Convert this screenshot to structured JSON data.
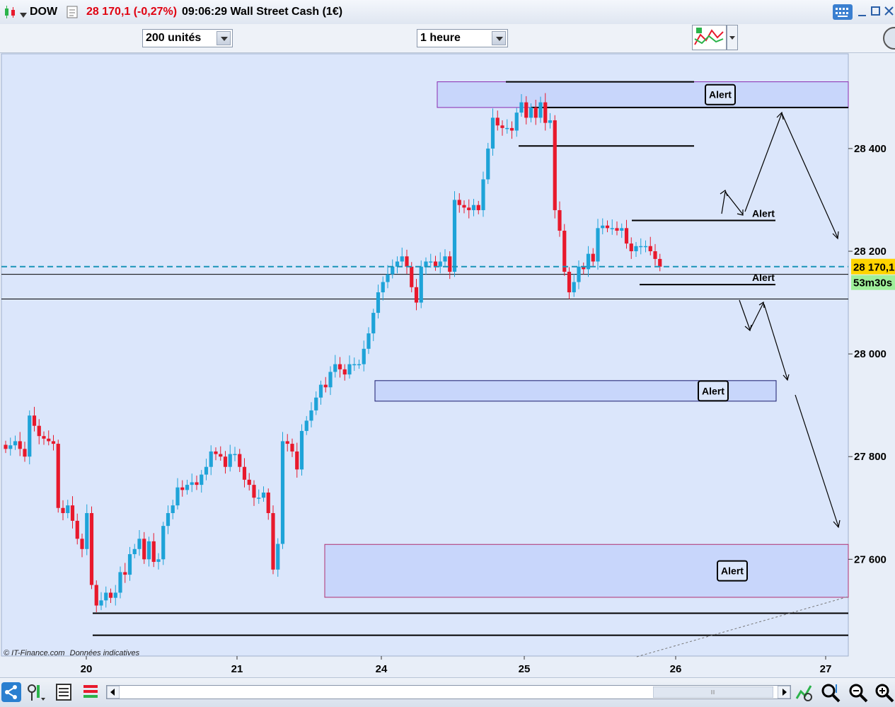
{
  "header": {
    "symbol": "DOW",
    "price_change": "28 170,1 (-0,27%)",
    "time_name": "09:06:29 Wall Street Cash (1€)"
  },
  "toolbar": {
    "quantity": "200 unités",
    "timeframe": "1 heure"
  },
  "chart_data": {
    "type": "candlestick",
    "instrument": "DOW",
    "ylim": [
      27430,
      28620
    ],
    "y_ticks": [
      {
        "value": 27600,
        "label": "27 600"
      },
      {
        "value": 27800,
        "label": "27 800"
      },
      {
        "value": 28000,
        "label": "28 000"
      },
      {
        "value": 28200,
        "label": "28 200"
      },
      {
        "value": 28400,
        "label": "28 400"
      }
    ],
    "x_ticks": [
      {
        "x": 20,
        "label": "20"
      },
      {
        "x": 21,
        "label": "21"
      },
      {
        "x": 24,
        "label": "24"
      },
      {
        "x": 25,
        "label": "25"
      },
      {
        "x": 26,
        "label": "26"
      },
      {
        "x": 27,
        "label": "27"
      }
    ],
    "current_price": 28170.1,
    "current_price_label": "28 170,1",
    "countdown": "53m30s",
    "candle_closes": [
      27815,
      27822,
      27830,
      27815,
      27800,
      27880,
      27860,
      27840,
      27835,
      27830,
      27825,
      27700,
      27690,
      27705,
      27675,
      27640,
      27620,
      27690,
      27550,
      27510,
      27520,
      27535,
      27525,
      27535,
      27575,
      27570,
      27610,
      27620,
      27640,
      27600,
      27635,
      27595,
      27600,
      27665,
      27690,
      27705,
      27740,
      27735,
      27745,
      27750,
      27745,
      27765,
      27780,
      27810,
      27805,
      27800,
      27780,
      27805,
      27805,
      27780,
      27755,
      27745,
      27720,
      27720,
      27730,
      27690,
      27580,
      27630,
      27830,
      27825,
      27810,
      27775,
      27850,
      27870,
      27890,
      27915,
      27940,
      27935,
      27965,
      27980,
      27970,
      27960,
      27980,
      27980,
      27980,
      28010,
      28040,
      28080,
      28120,
      28140,
      28155,
      28170,
      28180,
      28190,
      28170,
      28130,
      28100,
      28170,
      28180,
      28180,
      28170,
      28180,
      28190,
      28160,
      28300,
      28290,
      28285,
      28280,
      28290,
      28280,
      28340,
      28400,
      28460,
      28445,
      28440,
      28440,
      28435,
      28470,
      28490,
      28460,
      28480,
      28460,
      28490,
      28450,
      28455,
      28280,
      28240,
      28160,
      28120,
      28140,
      28170,
      28165,
      28195,
      28180,
      28245,
      28250,
      28245,
      28245,
      28240,
      28245,
      28215,
      28200,
      28210,
      28210,
      28210,
      28200,
      28185,
      28170
    ],
    "levels": [
      {
        "price": 28530,
        "label": ""
      },
      {
        "price": 28480,
        "label": "Alert"
      },
      {
        "price": 28405,
        "label": ""
      },
      {
        "price": 28260,
        "label": "Alert"
      },
      {
        "price": 28155,
        "label": ""
      },
      {
        "price": 28135,
        "label": "Alert"
      },
      {
        "price": 28107,
        "label": ""
      },
      {
        "price": 27495,
        "label": ""
      },
      {
        "price": 27452,
        "label": ""
      }
    ],
    "zones": [
      {
        "from": 28480,
        "to": 28530,
        "label": "Alert"
      },
      {
        "from": 27908,
        "to": 27948,
        "label": "Alert"
      },
      {
        "from": 27526,
        "to": 27629,
        "label": "Alert"
      }
    ],
    "annotation_arrows": true
  },
  "footer": {
    "copyright": "© IT-Finance.com",
    "note": "Données indicatives"
  },
  "colors": {
    "up": "#1ea3d8",
    "down": "#e8192c",
    "plot_bg": "#dbe6fb",
    "price_badge": "#ffd400",
    "countdown_badge": "#9ff09a"
  }
}
